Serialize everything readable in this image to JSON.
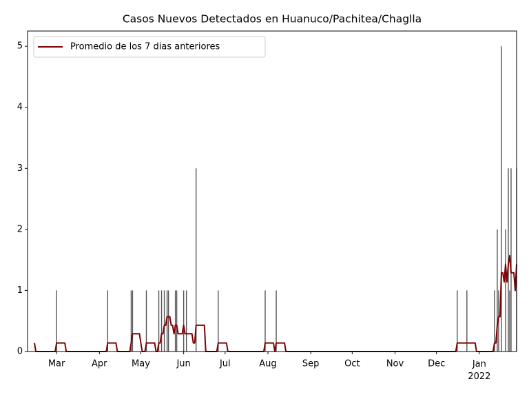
{
  "chart_data": {
    "type": "bar+line",
    "title": "Casos Nuevos Detectados en Huanuco/Pachitea/Chaglla",
    "xlim": [
      "2021-02-08",
      "2022-01-28"
    ],
    "xticks": [
      {
        "value": "2021-03-01",
        "label": "Mar"
      },
      {
        "value": "2021-04-01",
        "label": "Apr"
      },
      {
        "value": "2021-05-01",
        "label": "May"
      },
      {
        "value": "2021-06-01",
        "label": "Jun"
      },
      {
        "value": "2021-07-01",
        "label": "Jul"
      },
      {
        "value": "2021-08-01",
        "label": "Aug"
      },
      {
        "value": "2021-09-01",
        "label": "Sep"
      },
      {
        "value": "2021-10-01",
        "label": "Oct"
      },
      {
        "value": "2021-11-01",
        "label": "Nov"
      },
      {
        "value": "2021-12-01",
        "label": "Dec"
      },
      {
        "value": "2022-01-01",
        "label": "Jan\n2022"
      }
    ],
    "ylim": [
      0,
      5.25
    ],
    "yticks": [
      0,
      1,
      2,
      3,
      4,
      5
    ],
    "legend": "upper left",
    "bars": {
      "color": "#555555",
      "x": [
        "2021-03-01",
        "2021-04-07",
        "2021-04-24",
        "2021-04-25",
        "2021-05-05",
        "2021-05-14",
        "2021-05-16",
        "2021-05-18",
        "2021-05-20",
        "2021-05-21",
        "2021-05-26",
        "2021-05-27",
        "2021-06-01",
        "2021-06-03",
        "2021-06-10",
        "2021-06-26",
        "2021-07-30",
        "2021-08-07",
        "2021-12-16",
        "2021-12-23",
        "2022-01-12",
        "2022-01-14",
        "2022-01-15",
        "2022-01-17",
        "2022-01-20",
        "2022-01-22",
        "2022-01-23",
        "2022-01-24",
        "2022-01-28"
      ],
      "values": [
        1,
        1,
        1,
        1,
        1,
        1,
        1,
        1,
        1,
        1,
        1,
        1,
        1,
        1,
        3,
        1,
        1,
        1,
        1,
        1,
        1,
        2,
        1,
        5,
        2,
        3,
        1,
        3,
        3
      ]
    },
    "series": [
      {
        "name": "Promedio de los 7 dias anteriores",
        "color": "#800000",
        "x": [
          "2021-02-13",
          "2021-02-14",
          "2021-02-28",
          "2021-03-01",
          "2021-03-07",
          "2021-03-08",
          "2021-04-06",
          "2021-04-07",
          "2021-04-13",
          "2021-04-14",
          "2021-04-23",
          "2021-04-24",
          "2021-04-25",
          "2021-04-30",
          "2021-05-01",
          "2021-05-02",
          "2021-05-04",
          "2021-05-05",
          "2021-05-11",
          "2021-05-12",
          "2021-05-13",
          "2021-05-14",
          "2021-05-15",
          "2021-05-16",
          "2021-05-17",
          "2021-05-18",
          "2021-05-19",
          "2021-05-20",
          "2021-05-22",
          "2021-05-23",
          "2021-05-24",
          "2021-05-25",
          "2021-05-26",
          "2021-05-27",
          "2021-05-28",
          "2021-05-31",
          "2021-06-01",
          "2021-06-02",
          "2021-06-07",
          "2021-06-08",
          "2021-06-09",
          "2021-06-10",
          "2021-06-16",
          "2021-06-17",
          "2021-06-25",
          "2021-06-26",
          "2021-07-02",
          "2021-07-03",
          "2021-07-29",
          "2021-07-30",
          "2021-08-05",
          "2021-08-06",
          "2021-08-07",
          "2021-08-13",
          "2021-08-14",
          "2021-12-15",
          "2021-12-16",
          "2021-12-29",
          "2021-12-30",
          "2022-01-11",
          "2022-01-12",
          "2022-01-13",
          "2022-01-14",
          "2022-01-15",
          "2022-01-16",
          "2022-01-17",
          "2022-01-18",
          "2022-01-19",
          "2022-01-20",
          "2022-01-21",
          "2022-01-22",
          "2022-01-23",
          "2022-01-24",
          "2022-01-26",
          "2022-01-27",
          "2022-01-28"
        ],
        "values": [
          0.14,
          0,
          0,
          0.14,
          0.14,
          0,
          0,
          0.14,
          0.14,
          0,
          0,
          0.14,
          0.29,
          0.29,
          0.14,
          0,
          0,
          0.14,
          0.14,
          0,
          0,
          0.14,
          0.14,
          0.29,
          0.29,
          0.43,
          0.43,
          0.57,
          0.57,
          0.43,
          0.43,
          0.29,
          0.43,
          0.43,
          0.29,
          0.29,
          0.43,
          0.29,
          0.29,
          0.14,
          0.14,
          0.43,
          0.43,
          0,
          0,
          0.14,
          0.14,
          0,
          0,
          0.14,
          0.14,
          0,
          0.14,
          0.14,
          0,
          0,
          0.14,
          0.14,
          0,
          0,
          0.14,
          0.14,
          0.43,
          0.57,
          0.57,
          1.29,
          1.29,
          1.14,
          1.43,
          1.14,
          1.43,
          1.57,
          1.29,
          1.29,
          1.0,
          1.43
        ]
      }
    ]
  }
}
